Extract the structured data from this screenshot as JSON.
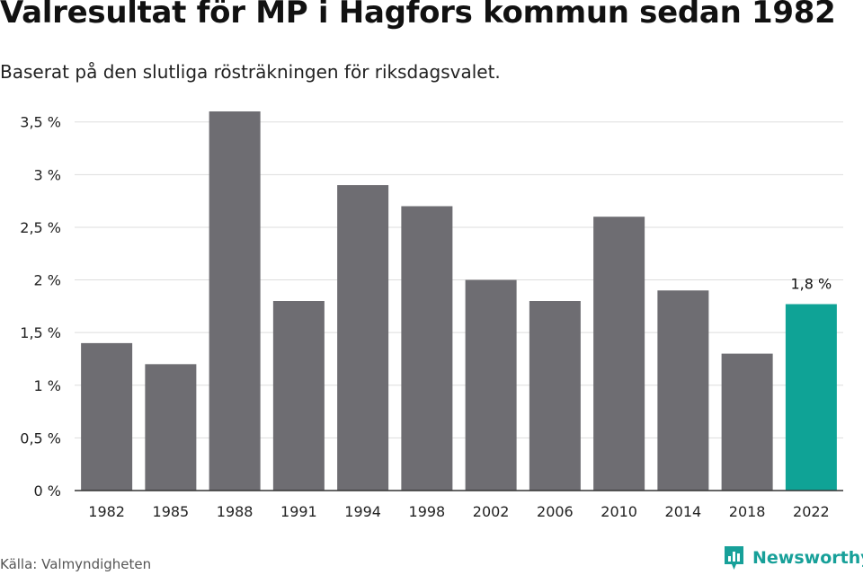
{
  "header": {
    "title": "Valresultat för MP i Hagfors kommun sedan 1982",
    "subtitle": "Baserat på den slutliga rösträkningen för riksdagsvalet."
  },
  "footer": {
    "source": "Källa: Valmyndigheten",
    "brand": "Newsworthy",
    "brand_icon": "newsworthy-logo-icon"
  },
  "colors": {
    "bar": "#6e6d72",
    "highlight": "#0fa396",
    "grid": "#dddddd",
    "axis": "#333333",
    "text": "#222222"
  },
  "chart_data": {
    "type": "bar",
    "categories": [
      "1982",
      "1985",
      "1988",
      "1991",
      "1994",
      "1998",
      "2002",
      "2006",
      "2010",
      "2014",
      "2018",
      "2022"
    ],
    "values": [
      1.4,
      1.2,
      3.6,
      1.8,
      2.9,
      2.7,
      2.0,
      1.8,
      2.6,
      1.9,
      1.3,
      1.77
    ],
    "title": "Valresultat för MP i Hagfors kommun sedan 1982",
    "subtitle": "Baserat på den slutliga rösträkningen för riksdagsvalet.",
    "ylim": [
      0,
      3.6
    ],
    "yticks": [
      0,
      0.5,
      1,
      1.5,
      2,
      2.5,
      3,
      3.5
    ],
    "ytick_labels": [
      "0 %",
      "0,5 %",
      "1 %",
      "1,5 %",
      "2 %",
      "2,5 %",
      "3 %",
      "3,5 %"
    ],
    "grid": true,
    "highlight_index": 11,
    "annotations": [
      {
        "category": "2022",
        "text": "1,8 %"
      }
    ]
  }
}
